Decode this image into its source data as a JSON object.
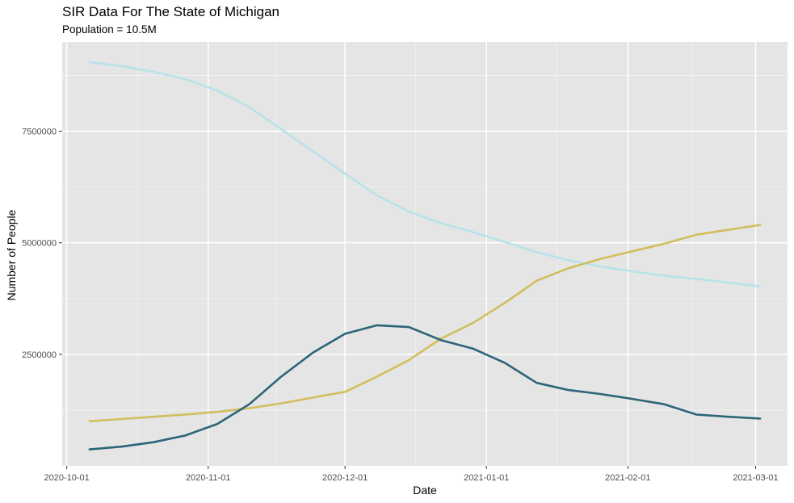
{
  "chart_data": {
    "type": "line",
    "title": "SIR Data For The State of Michigan",
    "subtitle": "Population = 10.5M",
    "xlabel": "Date",
    "ylabel": "Number of People",
    "x_type": "date",
    "xlim": [
      "2020-09-30",
      "2021-03-08"
    ],
    "ylim": [
      0,
      9500000
    ],
    "x_ticks": [
      "2020-10-01",
      "2020-11-01",
      "2020-12-01",
      "2021-01-01",
      "2021-02-01",
      "2021-03-01"
    ],
    "y_ticks": [
      2500000,
      5000000,
      7500000
    ],
    "y_tick_labels": [
      "2500000",
      "5000000",
      "7500000"
    ],
    "grid": true,
    "legend": "none",
    "series": [
      {
        "color": "#b8e2ea",
        "x": [
          "2020-10-06",
          "2020-10-13",
          "2020-10-20",
          "2020-10-27",
          "2020-11-03",
          "2020-11-10",
          "2020-11-17",
          "2020-11-24",
          "2020-12-01",
          "2020-12-08",
          "2020-12-15",
          "2020-12-22",
          "2020-12-29",
          "2021-01-05",
          "2021-01-12",
          "2021-01-19",
          "2021-01-26",
          "2021-02-02",
          "2021-02-09",
          "2021-02-16",
          "2021-02-23",
          "2021-03-02"
        ],
        "values": [
          9050000,
          8960000,
          8830000,
          8670000,
          8410000,
          8040000,
          7550000,
          7050000,
          6550000,
          6060000,
          5700000,
          5440000,
          5240000,
          5020000,
          4790000,
          4610000,
          4470000,
          4360000,
          4260000,
          4190000,
          4110000,
          4020000
        ]
      },
      {
        "color": "#d1be5d",
        "x": [
          "2020-10-06",
          "2020-10-13",
          "2020-10-20",
          "2020-10-27",
          "2020-11-03",
          "2020-11-10",
          "2020-11-17",
          "2020-11-24",
          "2020-12-01",
          "2020-12-08",
          "2020-12-15",
          "2020-12-22",
          "2020-12-29",
          "2021-01-05",
          "2021-01-12",
          "2021-01-19",
          "2021-01-26",
          "2021-02-02",
          "2021-02-09",
          "2021-02-16",
          "2021-02-23",
          "2021-03-02"
        ],
        "values": [
          1000000,
          1050000,
          1100000,
          1150000,
          1210000,
          1290000,
          1400000,
          1530000,
          1660000,
          2000000,
          2370000,
          2850000,
          3200000,
          3650000,
          4150000,
          4430000,
          4640000,
          4810000,
          4980000,
          5180000,
          5290000,
          5400000
        ]
      },
      {
        "color": "#2c6479",
        "x": [
          "2020-10-06",
          "2020-10-13",
          "2020-10-20",
          "2020-10-27",
          "2020-11-03",
          "2020-11-10",
          "2020-11-17",
          "2020-11-24",
          "2020-12-01",
          "2020-12-08",
          "2020-12-15",
          "2020-12-22",
          "2020-12-29",
          "2021-01-05",
          "2021-01-12",
          "2021-01-19",
          "2021-01-26",
          "2021-02-02",
          "2021-02-09",
          "2021-02-16",
          "2021-02-23",
          "2021-03-02"
        ],
        "values": [
          370000,
          430000,
          530000,
          680000,
          940000,
          1380000,
          2000000,
          2540000,
          2960000,
          3150000,
          3110000,
          2820000,
          2630000,
          2310000,
          1860000,
          1700000,
          1610000,
          1500000,
          1380000,
          1150000,
          1100000,
          1060000
        ]
      }
    ]
  }
}
